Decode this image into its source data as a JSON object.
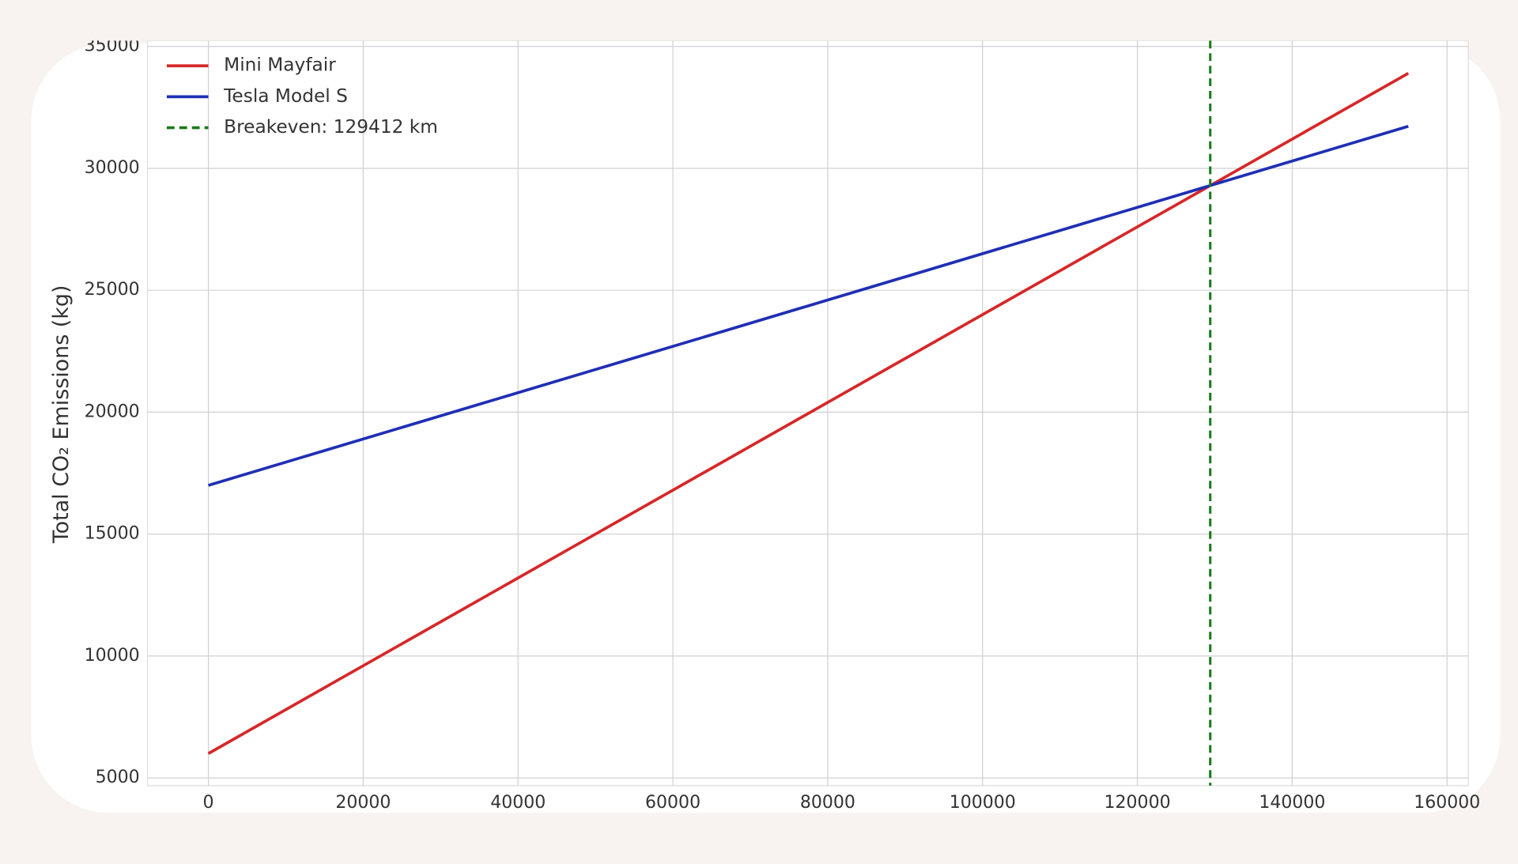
{
  "chart_data": {
    "type": "line",
    "y_label": "Total CO₂ Emissions (kg)",
    "x": [
      0,
      155000
    ],
    "series": [
      {
        "name": "Mini Mayfair",
        "color": "#d62728",
        "values": [
          6000,
          33900
        ]
      },
      {
        "name": "Tesla Model S",
        "color": "#1f2fb4",
        "values": [
          17000,
          31725
        ]
      }
    ],
    "breakeven": {
      "x": 129412,
      "label": "Breakeven: 129412 km",
      "color": "#1a7a1a"
    },
    "xlim": [
      -7875,
      162750
    ],
    "ylim": [
      4683,
      35238
    ],
    "xticks": [
      0,
      20000,
      40000,
      60000,
      80000,
      100000,
      120000,
      140000,
      160000
    ],
    "yticks": [
      5000,
      10000,
      15000,
      20000,
      25000,
      30000,
      35000
    ],
    "grid": true,
    "legend": "upper left"
  }
}
